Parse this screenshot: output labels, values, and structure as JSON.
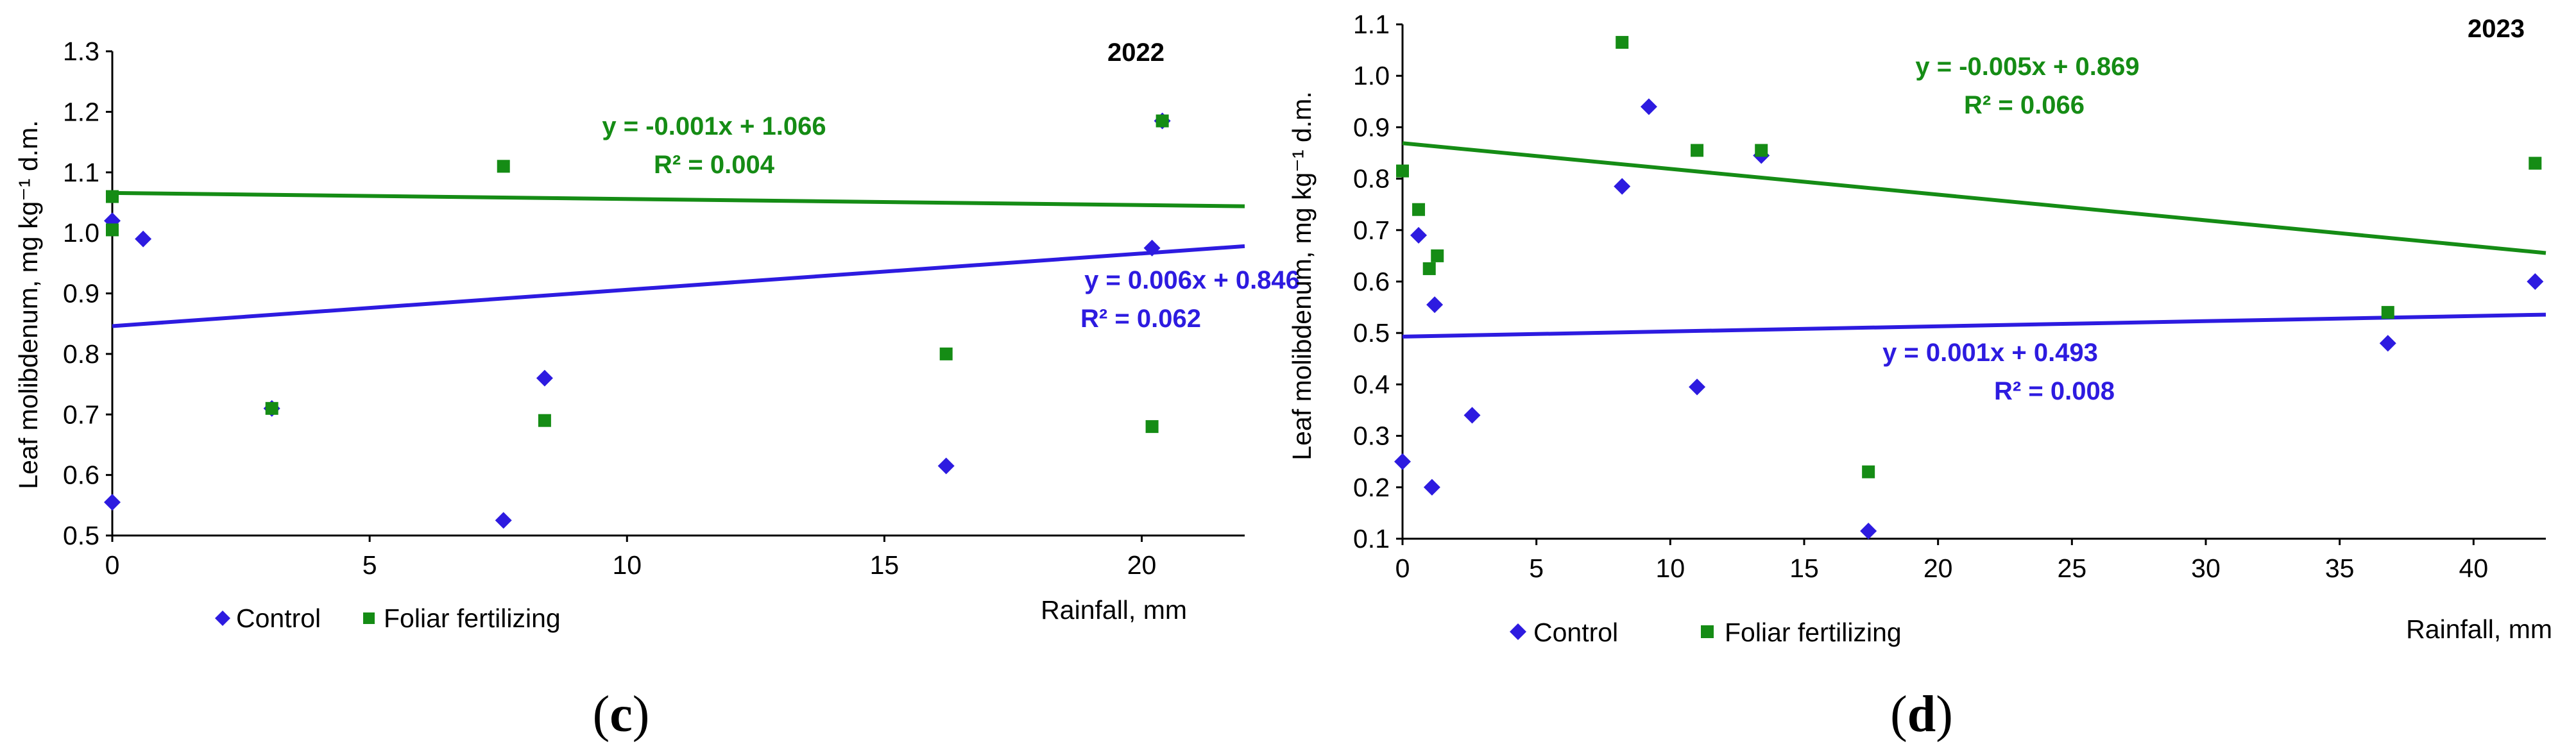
{
  "colors": {
    "control": "#2d1be0",
    "foliar": "#158c15"
  },
  "chart_data": [
    {
      "type": "scatter",
      "panel_label": "c",
      "year": "2022",
      "xlabel": "Rainfall, mm",
      "ylabel": "Leaf molibdenum, mg kg⁻¹ d.m.",
      "xlim": [
        0,
        22
      ],
      "ylim": [
        0.5,
        1.3
      ],
      "x_ticks": [
        0,
        5,
        10,
        15,
        20
      ],
      "y_ticks": [
        0.5,
        0.6,
        0.7,
        0.8,
        0.9,
        1.0,
        1.1,
        1.2,
        1.3
      ],
      "y_decimals": 1,
      "legend": [
        "Control",
        "Foliar fertilizing"
      ],
      "series": [
        {
          "name": "Control",
          "marker": "diamond",
          "color": "#2d1be0",
          "x": [
            0,
            0,
            0.6,
            3.1,
            7.6,
            8.4,
            16.2,
            20.2,
            20.4
          ],
          "y": [
            1.02,
            0.555,
            0.99,
            0.71,
            0.525,
            0.76,
            0.615,
            0.975,
            1.185
          ],
          "trendline": {
            "slope": 0.006,
            "intercept": 0.846,
            "equation": "y = 0.006x + 0.846",
            "r2": "R² = 0.062"
          }
        },
        {
          "name": "Foliar fertilizing",
          "marker": "square",
          "color": "#158c15",
          "x": [
            0,
            0,
            3.1,
            7.6,
            8.4,
            16.2,
            20.2,
            20.4
          ],
          "y": [
            1.06,
            1.005,
            0.71,
            1.11,
            0.69,
            0.8,
            0.68,
            1.185
          ],
          "trendline": {
            "slope": -0.001,
            "intercept": 1.066,
            "equation": "y = -0.001x + 1.066",
            "r2": "R² = 0.004"
          }
        }
      ]
    },
    {
      "type": "scatter",
      "panel_label": "d",
      "year": "2023",
      "xlabel": "Rainfall, mm",
      "ylabel": "Leaf molibdenum, mg kg⁻¹ d.m.",
      "xlim": [
        0,
        42.7
      ],
      "ylim": [
        0.1,
        1.1
      ],
      "x_ticks": [
        0,
        5,
        10,
        15,
        20,
        25,
        30,
        35,
        40
      ],
      "y_ticks": [
        0.1,
        0.2,
        0.3,
        0.4,
        0.5,
        0.6,
        0.7,
        0.8,
        0.9,
        1.0,
        1.1
      ],
      "y_decimals": 1,
      "legend": [
        "Control",
        "Foliar fertilizing"
      ],
      "series": [
        {
          "name": "Control",
          "marker": "diamond",
          "color": "#2d1be0",
          "x": [
            0,
            0.6,
            1.1,
            1.2,
            2.6,
            8.2,
            9.2,
            11.0,
            13.4,
            17.4,
            36.8,
            42.3
          ],
          "y": [
            0.25,
            0.69,
            0.2,
            0.555,
            0.34,
            0.785,
            0.94,
            0.395,
            0.845,
            0.115,
            0.48,
            0.6
          ],
          "trendline": {
            "slope": 0.001,
            "intercept": 0.493,
            "equation": "y = 0.001x + 0.493",
            "r2": "R² = 0.008"
          }
        },
        {
          "name": "Foliar fertilizing",
          "marker": "square",
          "color": "#158c15",
          "x": [
            0,
            0.6,
            1.0,
            1.3,
            8.2,
            11.0,
            13.4,
            17.4,
            36.8,
            42.3
          ],
          "y": [
            0.815,
            0.74,
            0.625,
            0.65,
            1.065,
            0.855,
            0.855,
            0.23,
            0.54,
            0.83
          ],
          "trendline": {
            "slope": -0.005,
            "intercept": 0.869,
            "equation": "y = -0.005x + 0.869",
            "r2": "R² = 0.066"
          }
        }
      ]
    }
  ]
}
